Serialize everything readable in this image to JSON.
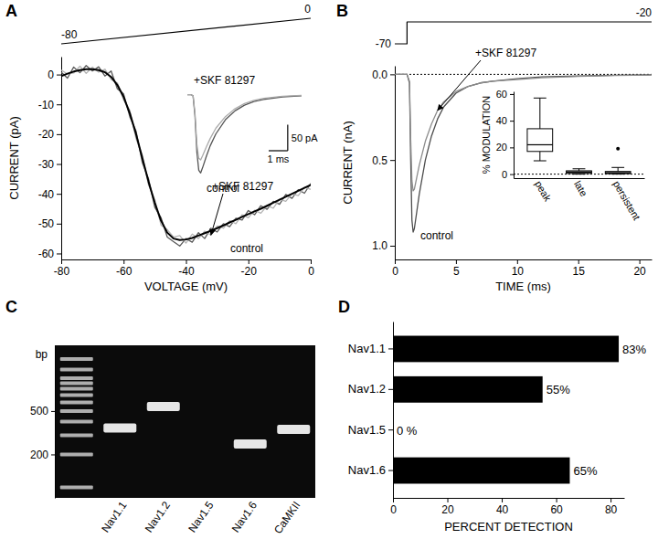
{
  "chart_data": [
    {
      "panel": "A",
      "type": "line",
      "x_label": "VOLTAGE (mV)",
      "y_label": "CURRENT (pA)",
      "x": [
        -80,
        -78,
        -76,
        -74,
        -72,
        -70,
        -68,
        -66,
        -64,
        -62,
        -60,
        -58,
        -56,
        -54,
        -52,
        -50,
        -48,
        -46,
        -44,
        -42,
        -40,
        -38,
        -36,
        -34,
        -32,
        -30,
        -28,
        -26,
        -24,
        -22,
        -20,
        -18,
        -16,
        -14,
        -12,
        -10,
        -8,
        -6,
        -4,
        -2,
        0
      ],
      "xlim": [
        -80,
        0
      ],
      "xticks": [
        -80,
        -60,
        -40,
        -20,
        0
      ],
      "ylim": [
        -62,
        6
      ],
      "yticks": [
        0,
        -10,
        -20,
        -30,
        -40,
        -50,
        -60
      ],
      "series": [
        {
          "name": "control",
          "color": "#5a5a5a",
          "values": [
            0.8,
            -1.2,
            2.5,
            0.6,
            3,
            1.2,
            2.6,
            -0.5,
            1.2,
            -4.8,
            -6.5,
            -14.2,
            -19,
            -29.5,
            -35,
            -44.5,
            -48,
            -54.5,
            -56,
            -57.5,
            -55,
            -56.2,
            -53,
            -55,
            -51.5,
            -52.8,
            -50,
            -51,
            -48.2,
            -48.8,
            -45.6,
            -47,
            -44,
            -45.2,
            -42.5,
            -43.5,
            -40.2,
            -41.5,
            -38.6,
            -39.8,
            -36.5
          ]
        },
        {
          "name": "+SKF 81297",
          "color": "#b4b4b4",
          "values": [
            1.5,
            0.2,
            0.5,
            2.8,
            0.4,
            2.5,
            0.8,
            1.8,
            -1.6,
            -2.8,
            -8.5,
            -12,
            -21.5,
            -27,
            -37,
            -42,
            -50.5,
            -52,
            -54.5,
            -54,
            -56.5,
            -53.5,
            -55,
            -52.5,
            -53.8,
            -50.8,
            -51.5,
            -49,
            -50,
            -47,
            -48,
            -45.5,
            -46.5,
            -44,
            -44.8,
            -41.8,
            -42.5,
            -40,
            -40.6,
            -37.8,
            -38.5
          ]
        },
        {
          "color": "#000000",
          "values": [
            -0.5,
            0.3,
            1,
            1.5,
            1.8,
            1.8,
            1.5,
            0.8,
            -0.8,
            -3.5,
            -7.5,
            -13,
            -20,
            -28,
            -36,
            -43,
            -49,
            -53,
            -55,
            -55.5,
            -55.3,
            -54.8,
            -54,
            -53.2,
            -52.4,
            -51.5,
            -50.6,
            -49.6,
            -48.7,
            -47.7,
            -46.8,
            -45.9,
            -45,
            -44,
            -43,
            -42,
            -41,
            -40,
            -39,
            -38,
            -37
          ]
        }
      ],
      "protocol": {
        "x": [
          -80,
          0
        ],
        "values": [
          -80,
          0
        ]
      }
    },
    {
      "type": "line",
      "tick_labels": false,
      "x": [
        0,
        0.2,
        0.3,
        0.4,
        0.5,
        0.6,
        0.7,
        0.8,
        1,
        1.2,
        1.5,
        2,
        2.5,
        3,
        3.5,
        4,
        5,
        6
      ],
      "xlim": [
        0,
        6
      ],
      "ylim": [
        -160,
        10
      ],
      "series": [
        {
          "name": "control",
          "color": "#555555",
          "values": [
            0,
            0,
            -2,
            -40,
            -110,
            -145,
            -150,
            -140,
            -118,
            -98,
            -75,
            -48,
            -31,
            -20,
            -13,
            -9,
            -4,
            -2
          ]
        },
        {
          "name": "+SKF 81297",
          "color": "#aaaaaa",
          "values": [
            0,
            0,
            -2,
            -35,
            -95,
            -122,
            -125,
            -117,
            -100,
            -84,
            -64,
            -42,
            -27,
            -17,
            -11,
            -7,
            -3,
            -1
          ]
        }
      ],
      "scale_bar": {
        "x": 1,
        "y": 50,
        "x_label": "1 ms",
        "y_label": "50 pA"
      }
    },
    {
      "panel": "B",
      "type": "line",
      "x_label": "TIME (ms)",
      "y_label": "CURRENT (nA)",
      "x": [
        0,
        1,
        1.2,
        1.3,
        1.4,
        1.5,
        1.6,
        1.8,
        2,
        2.5,
        3,
        3.5,
        4,
        5,
        6,
        7,
        8,
        10,
        12,
        15,
        18,
        21
      ],
      "xlim": [
        0,
        21
      ],
      "xticks": [
        0,
        5,
        10,
        15,
        20
      ],
      "ylim": [
        1.08,
        -0.05
      ],
      "yticks": [
        {
          "value": 0,
          "label": "0.0"
        },
        0.5,
        {
          "value": 1,
          "label": "1.0"
        }
      ],
      "series": [
        {
          "name": "control",
          "color": "#4d4d4d",
          "values": [
            0,
            0,
            0.05,
            0.5,
            0.85,
            0.92,
            0.9,
            0.8,
            0.7,
            0.5,
            0.36,
            0.26,
            0.19,
            0.11,
            0.07,
            0.05,
            0.04,
            0.025,
            0.015,
            0.01,
            0.005,
            0.003
          ]
        },
        {
          "name": "+SKF 81297",
          "color": "#8c8c8c",
          "values": [
            0,
            0,
            0.04,
            0.38,
            0.62,
            0.68,
            0.67,
            0.6,
            0.53,
            0.39,
            0.29,
            0.21,
            0.16,
            0.1,
            0.07,
            0.05,
            0.04,
            0.03,
            0.02,
            0.012,
            0.007,
            0.004
          ]
        }
      ],
      "protocol": {
        "x": [
          0,
          1,
          1,
          21
        ],
        "values": [
          -70,
          -70,
          -20,
          -20
        ]
      }
    },
    {
      "type": "box",
      "y_label": "% MODULATION",
      "categories": [
        "peak",
        "late",
        "persistent"
      ],
      "ylim": [
        -3,
        62
      ],
      "yticks": [
        0,
        20,
        40,
        60
      ],
      "colors": [
        "#ffffff",
        "#a6a6a6",
        "#a6a6a6"
      ],
      "boxes": [
        {
          "min": 10,
          "q1": 17,
          "median": 22,
          "q3": 34,
          "max": 57,
          "outliers": []
        },
        {
          "min": 0,
          "q1": 0.5,
          "median": 1.5,
          "q3": 2.5,
          "max": 4,
          "outliers": []
        },
        {
          "min": 0,
          "q1": 0.3,
          "median": 1,
          "q3": 2,
          "max": 5,
          "outliers": [
            19
          ]
        }
      ]
    },
    {
      "panel": "C",
      "type": "gel",
      "y_label": "bp",
      "log": "y",
      "categories": [
        null,
        "Nav1.1",
        "Nav1.2",
        "Nav1.5",
        "Nav1.6",
        "CaMKII"
      ],
      "values": [
        null,
        350,
        550,
        null,
        250,
        340
      ],
      "ladder": [
        100,
        200,
        300,
        400,
        500,
        600,
        700,
        800,
        900,
        1000,
        1200,
        1500
      ],
      "ylim": [
        80,
        2000
      ],
      "yticks": [
        500,
        200
      ],
      "color": "#e6e6e6"
    },
    {
      "panel": "D",
      "type": "bar",
      "orientation": "horizontal",
      "x_label": "PERCENT DETECTION",
      "categories": [
        "Nav1.1",
        "Nav1.2",
        "Nav1.5",
        "Nav1.6"
      ],
      "values": [
        83,
        55,
        0,
        65
      ],
      "value_labels": [
        "83%",
        "55%",
        "0 %",
        "65%"
      ],
      "data_labels": true,
      "xlim": [
        0,
        85
      ],
      "xticks": [
        0,
        20,
        40,
        60,
        80
      ],
      "color": "#000000"
    }
  ]
}
